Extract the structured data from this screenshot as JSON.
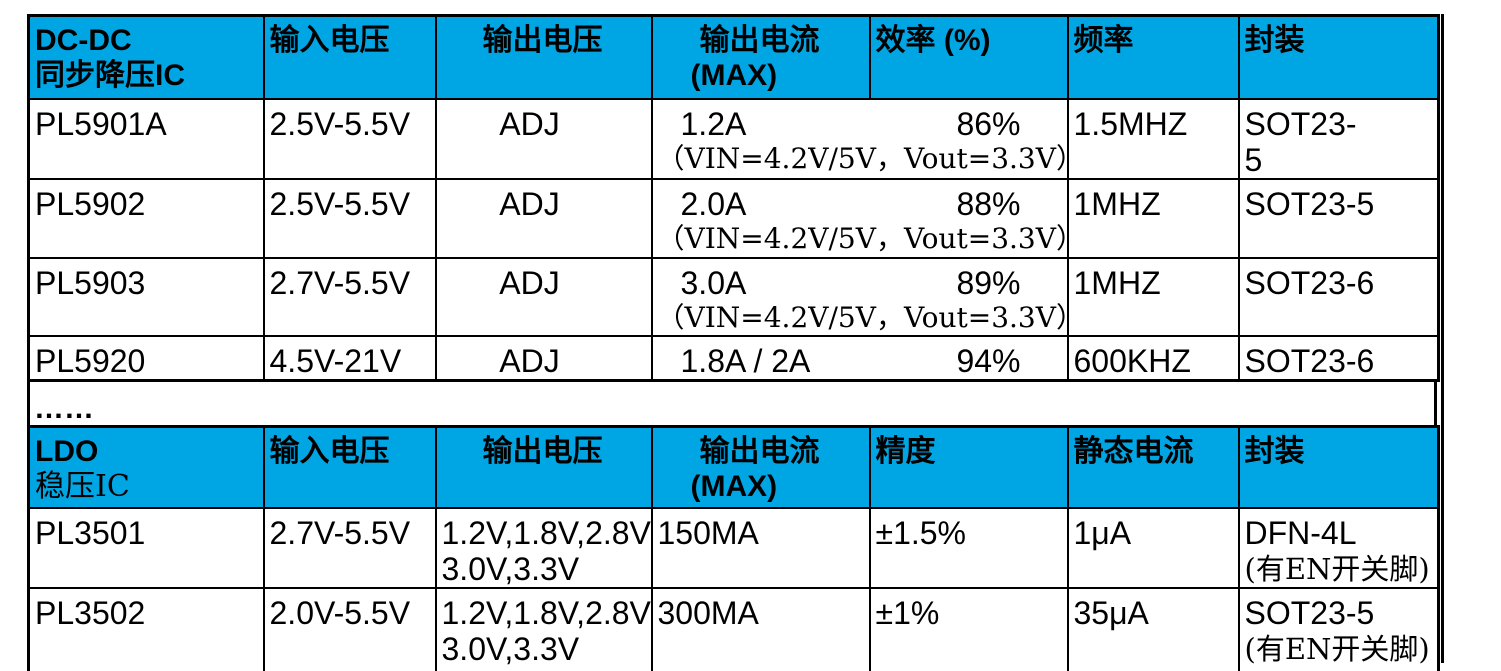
{
  "colors": {
    "header_bg": "#00A6E4",
    "border": "#000000",
    "page_bg": "#FFFFFF",
    "text": "#000000"
  },
  "ellipsis": "……",
  "dcdc": {
    "title_line1": "DC-DC",
    "title_line2": "同步降压IC",
    "col_vin": "输入电压",
    "col_vout": "输出电压",
    "col_iout_1": "输出电流",
    "col_iout_2": "(MAX)",
    "col_eff": "效率 (%)",
    "col_freq": "频率",
    "col_pkg": "封装",
    "rows": [
      {
        "model": "PL5901A",
        "vin": "2.5V-5.5V",
        "vout": "ADJ",
        "iout": "1.2A",
        "eff": "86%",
        "cond": "（VIN=4.2V/5V，Vout=3.3V）",
        "freq": "1.5MHZ",
        "pkg": "SOT23-",
        "pkg2": "5"
      },
      {
        "model": "PL5902",
        "vin": "2.5V-5.5V",
        "vout": "ADJ",
        "iout": "2.0A",
        "eff": "88%",
        "cond": "（VIN=4.2V/5V，Vout=3.3V）",
        "freq": "1MHZ",
        "pkg": "SOT23-5",
        "pkg2": ""
      },
      {
        "model": "PL5903",
        "vin": "2.7V-5.5V",
        "vout": "ADJ",
        "iout": "3.0A",
        "eff": "89%",
        "cond": "（VIN=4.2V/5V，Vout=3.3V）",
        "freq": "1MHZ",
        "pkg": "SOT23-6",
        "pkg2": ""
      },
      {
        "model": "PL5920",
        "vin": "4.5V-21V",
        "vout": "ADJ",
        "iout": "1.8A / 2A",
        "eff": "94%",
        "cond": "",
        "freq": "600KHZ",
        "pkg": "SOT23-6",
        "pkg2": ""
      }
    ]
  },
  "ldo": {
    "title_line1": "LDO",
    "title_line2": "稳压IC",
    "col_vin": "输入电压",
    "col_vout": "输出电压",
    "col_iout_1": "输出电流",
    "col_iout_2": "(MAX)",
    "col_acc": "精度",
    "col_iq": "静态电流",
    "col_pkg": "封装",
    "rows": [
      {
        "model": "PL3501",
        "vin": "2.7V-5.5V",
        "vout1": "1.2V,1.8V,2.8V",
        "vout2": "3.0V,3.3V",
        "iout": "150MA",
        "acc": "±1.5%",
        "iq": "1μA",
        "pkg": "DFN-4L",
        "pkg2": "(有EN开关脚)"
      },
      {
        "model": "PL3502",
        "vin": "2.0V-5.5V",
        "vout1": "1.2V,1.8V,2.8V",
        "vout2": "3.0V,3.3V",
        "iout": "300MA",
        "acc": "±1%",
        "iq": "35μA",
        "pkg": "SOT23-5",
        "pkg2": "(有EN开关脚)"
      }
    ]
  }
}
